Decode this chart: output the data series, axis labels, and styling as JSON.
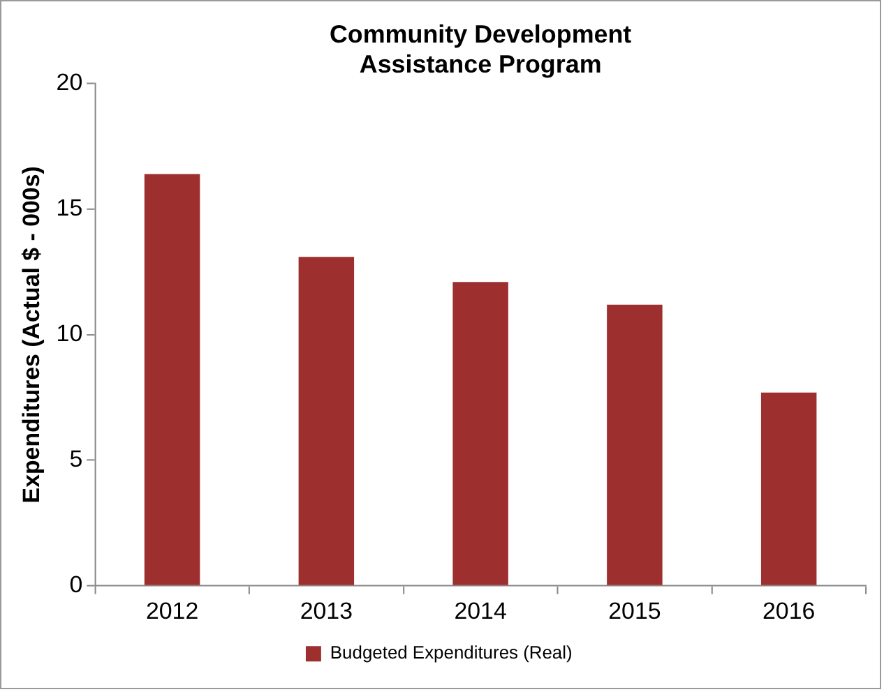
{
  "chart_data": {
    "type": "bar",
    "title": "Community Development\nAssistance Program",
    "ylabel": "Expenditures (Actual $ - 000s)",
    "categories": [
      "2012",
      "2013",
      "2014",
      "2015",
      "2016"
    ],
    "series": [
      {
        "name": "Budgeted Expenditures (Real)",
        "color": "#9e2f2f",
        "values": [
          16.4,
          13.1,
          12.1,
          11.2,
          7.7
        ]
      }
    ],
    "ylim": [
      0,
      20
    ],
    "yticks": [
      0,
      5,
      10,
      15,
      20
    ],
    "grid": false,
    "legend": "bottom"
  }
}
